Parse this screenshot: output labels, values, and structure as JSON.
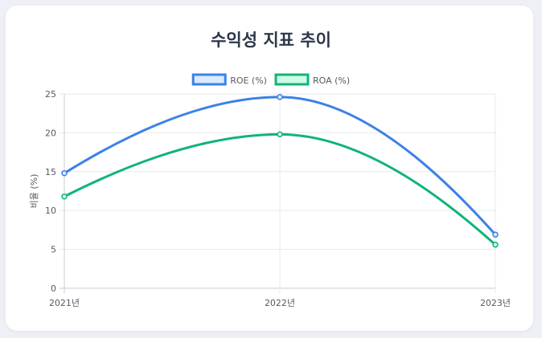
{
  "chart_data": {
    "type": "line",
    "title": "수익성 지표 추이",
    "xlabel": "",
    "ylabel": "비율 (%)",
    "categories": [
      "2021년",
      "2022년",
      "2023년"
    ],
    "ylim": [
      0,
      25
    ],
    "yticks": [
      0,
      5,
      10,
      15,
      20,
      25
    ],
    "grid": true,
    "legend_position": "top",
    "smooth": true,
    "series": [
      {
        "name": "ROE (%)",
        "values": [
          14.8,
          24.6,
          6.9
        ],
        "color": "#3b82e6",
        "fill": "#dbeafe"
      },
      {
        "name": "ROA (%)",
        "values": [
          11.8,
          19.8,
          5.6
        ],
        "color": "#10b47a",
        "fill": "#d1fae5"
      }
    ]
  }
}
